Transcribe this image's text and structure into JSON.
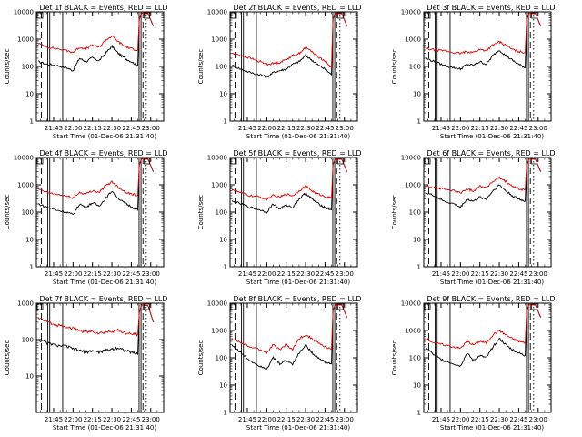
{
  "chart_data": [
    {
      "type": "line",
      "title": "Det 1f BLACK = Events, RED = LLD",
      "xlabel": "Start Time (01-Dec-06 21:31:40)",
      "ylabel": "Counts/sec",
      "xtick_labels": [
        "21:45",
        "22:00",
        "22:15",
        "22:30",
        "22:45",
        "23:00"
      ],
      "ytick_labels": [
        "1",
        "10",
        "100",
        "1000",
        "10000"
      ],
      "y_scale": "log",
      "ylim": [
        1,
        10000
      ],
      "xlim": [
        "21:31:40",
        "23:10:00"
      ],
      "x": [
        "21:33",
        "21:40",
        "21:47",
        "21:55",
        "22:00",
        "22:05",
        "22:10",
        "22:15",
        "22:20",
        "22:25",
        "22:30",
        "22:35",
        "22:40",
        "22:45",
        "22:50"
      ],
      "series": [
        {
          "name": "Events",
          "color": "#000000",
          "values": [
            150,
            120,
            110,
            90,
            70,
            200,
            150,
            210,
            160,
            300,
            550,
            300,
            200,
            150,
            110
          ]
        },
        {
          "name": "LLD",
          "color": "#e00000",
          "values": [
            700,
            520,
            450,
            380,
            330,
            500,
            450,
            600,
            500,
            900,
            1300,
            800,
            550,
            450,
            400
          ]
        }
      ]
    },
    {
      "type": "line",
      "title": "Det 2f BLACK = Events, RED = LLD",
      "xlabel": "Start Time (01-Dec-06 21:31:40)",
      "ylabel": "Counts/sec",
      "xtick_labels": [
        "21:45",
        "22:00",
        "22:15",
        "22:30",
        "22:45",
        "23:00"
      ],
      "ytick_labels": [
        "1",
        "10",
        "100",
        "1000",
        "10000"
      ],
      "y_scale": "log",
      "ylim": [
        1,
        10000
      ],
      "xlim": [
        "21:31:40",
        "23:10:00"
      ],
      "x": [
        "21:33",
        "21:40",
        "21:47",
        "21:55",
        "22:00",
        "22:05",
        "22:10",
        "22:15",
        "22:20",
        "22:25",
        "22:30",
        "22:35",
        "22:40",
        "22:45",
        "22:50"
      ],
      "series": [
        {
          "name": "Events",
          "color": "#000000",
          "values": [
            110,
            80,
            60,
            50,
            40,
            60,
            70,
            80,
            120,
            150,
            250,
            170,
            110,
            80,
            50
          ]
        },
        {
          "name": "LLD",
          "color": "#e00000",
          "values": [
            300,
            260,
            200,
            150,
            120,
            130,
            140,
            180,
            250,
            300,
            500,
            350,
            220,
            160,
            90
          ]
        }
      ]
    },
    {
      "type": "line",
      "title": "Det 3f BLACK = Events, RED = LLD",
      "xlabel": "Start Time (01-Dec-06 21:31:40)",
      "ylabel": "Counts/sec",
      "xtick_labels": [
        "21:45",
        "22:00",
        "22:15",
        "22:30",
        "22:45",
        "23:00"
      ],
      "ytick_labels": [
        "1",
        "10",
        "100",
        "1000",
        "10000"
      ],
      "y_scale": "log",
      "ylim": [
        1,
        10000
      ],
      "xlim": [
        "21:31:40",
        "23:10:00"
      ],
      "x": [
        "21:33",
        "21:40",
        "21:47",
        "21:55",
        "22:00",
        "22:05",
        "22:10",
        "22:15",
        "22:20",
        "22:25",
        "22:30",
        "22:35",
        "22:40",
        "22:45",
        "22:50"
      ],
      "series": [
        {
          "name": "Events",
          "color": "#000000",
          "values": [
            200,
            150,
            110,
            90,
            80,
            120,
            110,
            150,
            120,
            250,
            400,
            250,
            170,
            120,
            90
          ]
        },
        {
          "name": "LLD",
          "color": "#e00000",
          "values": [
            450,
            400,
            380,
            320,
            300,
            350,
            330,
            420,
            380,
            600,
            800,
            600,
            420,
            350,
            320
          ]
        }
      ]
    },
    {
      "type": "line",
      "title": "Det 4f BLACK = Events, RED = LLD",
      "xlabel": "Start Time (01-Dec-06 21:31:40)",
      "ylabel": "Counts/sec",
      "xtick_labels": [
        "21:45",
        "22:00",
        "22:15",
        "22:30",
        "22:45",
        "23:00"
      ],
      "ytick_labels": [
        "1",
        "10",
        "100",
        "1000",
        "10000"
      ],
      "y_scale": "log",
      "ylim": [
        1,
        10000
      ],
      "xlim": [
        "21:31:40",
        "23:10:00"
      ],
      "x": [
        "21:33",
        "21:40",
        "21:47",
        "21:55",
        "22:00",
        "22:05",
        "22:10",
        "22:15",
        "22:20",
        "22:25",
        "22:30",
        "22:35",
        "22:40",
        "22:45",
        "22:50"
      ],
      "series": [
        {
          "name": "Events",
          "color": "#000000",
          "values": [
            200,
            150,
            120,
            100,
            80,
            200,
            150,
            220,
            170,
            300,
            600,
            320,
            210,
            160,
            120
          ]
        },
        {
          "name": "LLD",
          "color": "#e00000",
          "values": [
            700,
            520,
            450,
            380,
            330,
            520,
            460,
            620,
            520,
            900,
            1300,
            820,
            560,
            460,
            420
          ]
        }
      ]
    },
    {
      "type": "line",
      "title": "Det 5f BLACK = Events, RED = LLD",
      "xlabel": "Start Time (01-Dec-06 21:31:40)",
      "ylabel": "Counts/sec",
      "xtick_labels": [
        "21:45",
        "22:00",
        "22:15",
        "22:30",
        "22:45",
        "23:00"
      ],
      "ytick_labels": [
        "1",
        "10",
        "100",
        "1000",
        "10000"
      ],
      "y_scale": "log",
      "ylim": [
        1,
        10000
      ],
      "xlim": [
        "21:31:40",
        "23:10:00"
      ],
      "x": [
        "21:33",
        "21:40",
        "21:47",
        "21:55",
        "22:00",
        "22:05",
        "22:10",
        "22:15",
        "22:20",
        "22:25",
        "22:30",
        "22:35",
        "22:40",
        "22:45",
        "22:50"
      ],
      "series": [
        {
          "name": "Events",
          "color": "#000000",
          "values": [
            250,
            200,
            150,
            120,
            100,
            200,
            130,
            180,
            150,
            300,
            500,
            300,
            200,
            150,
            120
          ]
        },
        {
          "name": "LLD",
          "color": "#e00000",
          "values": [
            700,
            500,
            400,
            350,
            300,
            400,
            350,
            450,
            400,
            600,
            900,
            600,
            450,
            380,
            320
          ]
        }
      ]
    },
    {
      "type": "line",
      "title": "Det 6f BLACK = Events, RED = LLD",
      "xlabel": "Start Time (01-Dec-06 21:31:40)",
      "ylabel": "Counts/sec",
      "xtick_labels": [
        "21:45",
        "22:00",
        "22:15",
        "22:30",
        "22:45",
        "23:00"
      ],
      "ytick_labels": [
        "1",
        "10",
        "100",
        "1000",
        "10000"
      ],
      "y_scale": "log",
      "ylim": [
        1,
        10000
      ],
      "xlim": [
        "21:31:40",
        "23:10:00"
      ],
      "x": [
        "21:33",
        "21:40",
        "21:47",
        "21:55",
        "22:00",
        "22:05",
        "22:10",
        "22:15",
        "22:20",
        "22:25",
        "22:30",
        "22:35",
        "22:40",
        "22:45",
        "22:50"
      ],
      "series": [
        {
          "name": "Events",
          "color": "#000000",
          "values": [
            500,
            400,
            250,
            200,
            150,
            300,
            250,
            350,
            300,
            600,
            1000,
            600,
            400,
            300,
            250
          ]
        },
        {
          "name": "LLD",
          "color": "#e00000",
          "values": [
            900,
            800,
            700,
            600,
            500,
            700,
            600,
            900,
            800,
            1300,
            1800,
            1300,
            900,
            700,
            650
          ]
        }
      ]
    },
    {
      "type": "line",
      "title": "Det 7f BLACK = Events, RED = LLD",
      "xlabel": "Start Time (01-Dec-06 21:31:40)",
      "ylabel": "Counts/sec",
      "xtick_labels": [
        "21:45",
        "22:00",
        "22:15",
        "22:30",
        "22:45",
        "23:00"
      ],
      "ytick_labels": [
        "10",
        "100",
        "1000"
      ],
      "y_scale": "log",
      "ylim": [
        1,
        1000
      ],
      "xlim": [
        "21:31:40",
        "23:10:00"
      ],
      "x": [
        "21:33",
        "21:40",
        "21:47",
        "21:55",
        "22:00",
        "22:05",
        "22:10",
        "22:15",
        "22:20",
        "22:25",
        "22:30",
        "22:35",
        "22:40",
        "22:45",
        "22:50"
      ],
      "series": [
        {
          "name": "Events",
          "color": "#000000",
          "values": [
            100,
            80,
            70,
            65,
            55,
            50,
            45,
            50,
            45,
            50,
            55,
            60,
            50,
            45,
            40
          ]
        },
        {
          "name": "LLD",
          "color": "#e00000",
          "values": [
            400,
            300,
            250,
            230,
            200,
            180,
            160,
            170,
            150,
            160,
            170,
            180,
            150,
            140,
            140
          ]
        }
      ]
    },
    {
      "type": "line",
      "title": "Det 8f BLACK = Events, RED = LLD",
      "xlabel": "Start Time (01-Dec-06 21:31:40)",
      "ylabel": "Counts/sec",
      "xtick_labels": [
        "21:45",
        "22:00",
        "22:15",
        "22:30",
        "22:45",
        "23:00"
      ],
      "ytick_labels": [
        "1",
        "10",
        "100",
        "1000",
        "10000"
      ],
      "y_scale": "log",
      "ylim": [
        1,
        10000
      ],
      "xlim": [
        "21:31:40",
        "23:10:00"
      ],
      "x": [
        "21:33",
        "21:40",
        "21:47",
        "21:55",
        "22:00",
        "22:05",
        "22:10",
        "22:15",
        "22:20",
        "22:25",
        "22:30",
        "22:35",
        "22:40",
        "22:45",
        "22:50"
      ],
      "series": [
        {
          "name": "Events",
          "color": "#000000",
          "values": [
            300,
            150,
            80,
            50,
            40,
            100,
            60,
            80,
            60,
            150,
            300,
            150,
            100,
            70,
            60
          ]
        },
        {
          "name": "LLD",
          "color": "#e00000",
          "values": [
            500,
            350,
            250,
            200,
            150,
            300,
            200,
            300,
            200,
            500,
            700,
            500,
            350,
            250,
            200
          ]
        }
      ]
    },
    {
      "type": "line",
      "title": "Det 9f BLACK = Events, RED = LLD",
      "xlabel": "Start Time (01-Dec-06 21:31:40)",
      "ylabel": "Counts/sec",
      "xtick_labels": [
        "21:45",
        "22:00",
        "22:15",
        "22:30",
        "22:45",
        "23:00"
      ],
      "ytick_labels": [
        "1",
        "10",
        "100",
        "1000",
        "10000"
      ],
      "y_scale": "log",
      "ylim": [
        1,
        10000
      ],
      "xlim": [
        "21:31:40",
        "23:10:00"
      ],
      "x": [
        "21:33",
        "21:40",
        "21:47",
        "21:55",
        "22:00",
        "22:05",
        "22:10",
        "22:15",
        "22:20",
        "22:25",
        "22:30",
        "22:35",
        "22:40",
        "22:45",
        "22:50"
      ],
      "series": [
        {
          "name": "Events",
          "color": "#000000",
          "values": [
            250,
            120,
            80,
            60,
            50,
            150,
            80,
            120,
            100,
            250,
            500,
            300,
            200,
            150,
            120
          ]
        },
        {
          "name": "LLD",
          "color": "#e00000",
          "values": [
            500,
            350,
            300,
            250,
            220,
            400,
            300,
            400,
            350,
            700,
            1000,
            700,
            500,
            400,
            350
          ]
        }
      ]
    }
  ]
}
